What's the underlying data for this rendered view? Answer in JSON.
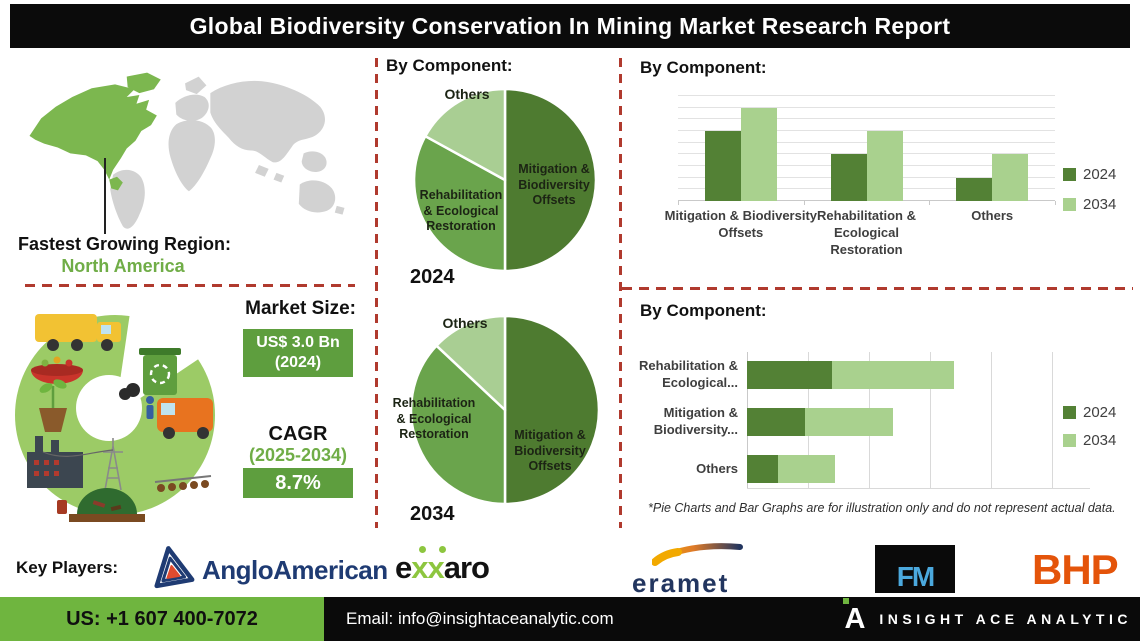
{
  "title": "Global Biodiversity Conservation In Mining Market Research Report",
  "colors": {
    "dark_green": "#4E7B30",
    "mid_green": "#6AA44C",
    "light_green": "#A9CE93",
    "bar_dark": "#538135",
    "bar_light": "#A9D18E",
    "map_green": "#7CB74F",
    "map_gray": "#D2D2D2",
    "accent_green": "#70AD47",
    "box_green": "#5E9E3E",
    "footer_green": "#6FB53F",
    "dash_red": "#B03A2E",
    "navy": "#1F3B73",
    "bhp_orange": "#E4540A",
    "fm_blue": "#4BA9DE",
    "exxaro_green": "#8DC63F"
  },
  "region": {
    "label": "Fastest Growing Region:",
    "value": "North America"
  },
  "market": {
    "size_label": "Market Size:",
    "size_value": "US$ 3.0 Bn",
    "size_year": "(2024)",
    "cagr_label": "CAGR",
    "cagr_period": "(2025-2034)",
    "cagr_value": "8.7%"
  },
  "sections": {
    "pie_heading": "By Component:",
    "bar_heading": "By Component:",
    "hbar_heading": "By Component:"
  },
  "disclaimer": "*Pie Charts and Bar Graphs are for illustration only and do not represent actual data.",
  "key_players": {
    "label": "Key Players:",
    "anglo": "AngloAmerican",
    "exxaro_e": "e",
    "exxaro_xx": "xx",
    "exxaro_aro": "aro",
    "eramet": "eramet",
    "fm": "FM",
    "bhp": "BHP"
  },
  "footer": {
    "phone": "US: +1 607 400-7072",
    "email": "Email: info@insightaceanalytic.com",
    "brand_mark": "A",
    "brand": "INSIGHT ACE ANALYTIC"
  },
  "chart_data": [
    {
      "type": "pie",
      "title": "By Component:",
      "year": "2024",
      "slices": [
        {
          "label": "Mitigation & Biodiversity Offsets",
          "value": 50
        },
        {
          "label": "Rehabilitation & Ecological Restoration",
          "value": 33
        },
        {
          "label": "Others",
          "value": 17
        }
      ],
      "note": "illustrative percentages estimated from wedge angles"
    },
    {
      "type": "pie",
      "title": "By Component:",
      "year": "2034",
      "slices": [
        {
          "label": "Mitigation & Biodiversity Offsets",
          "value": 50
        },
        {
          "label": "Rehabilitation & Ecological Restoration",
          "value": 37
        },
        {
          "label": "Others",
          "value": 13
        }
      ]
    },
    {
      "type": "bar",
      "title": "By Component:",
      "categories": [
        "Mitigation & Biodiversity Offsets",
        "Rehabilitation & Ecological Restoration",
        "Others"
      ],
      "series": [
        {
          "name": "2024",
          "values": [
            6,
            4,
            2
          ]
        },
        {
          "name": "2034",
          "values": [
            8,
            6,
            4
          ]
        }
      ],
      "ylim": [
        0,
        9
      ],
      "grid": true,
      "legend_position": "right"
    },
    {
      "type": "bar",
      "subtype": "horizontal-stacked",
      "title": "By Component:",
      "categories": [
        "Rehabilitation & Ecological...",
        "Mitigation & Biodiversity...",
        "Others"
      ],
      "series": [
        {
          "name": "2024",
          "values": [
            1.4,
            0.95,
            0.5
          ]
        },
        {
          "name": "2034",
          "values": [
            2.0,
            1.45,
            0.95
          ]
        }
      ],
      "xlim": [
        0,
        5.5
      ],
      "grid": true,
      "legend_position": "right"
    }
  ]
}
